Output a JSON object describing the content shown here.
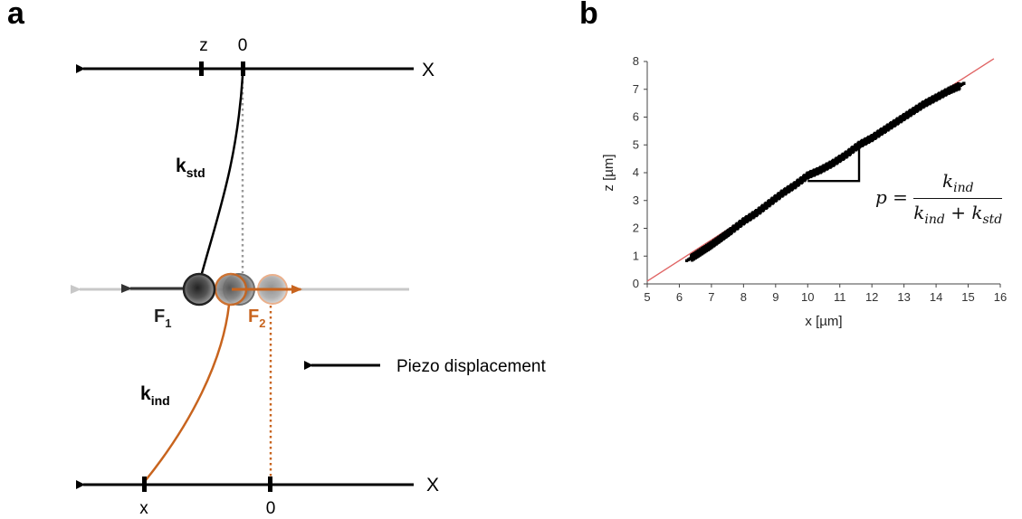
{
  "panel_a": {
    "label": "a",
    "top_axis_label": "X",
    "top_tick_z": "z",
    "top_tick_0": "0",
    "spring_std": {
      "k": "k",
      "sub": "std"
    },
    "spring_ind": {
      "k": "k",
      "sub": "ind"
    },
    "force1": {
      "F": "F",
      "sub": "1"
    },
    "force2": {
      "F": "F",
      "sub": "2"
    },
    "piezo_label": "Piezo displacement",
    "bottom_axis_label": "X",
    "bottom_tick_x": "x",
    "bottom_tick_0": "0",
    "colors": {
      "black": "#000000",
      "orange": "#c8641e",
      "grey": "#bdbdbd"
    }
  },
  "panel_b": {
    "label": "b",
    "formula": {
      "lhs": "p =",
      "numerator": {
        "k": "k",
        "sub": "ind"
      },
      "denominator": {
        "k1": "k",
        "sub1": "ind",
        "plus": "+",
        "k2": "k",
        "sub2": "std"
      }
    }
  },
  "chart_data": {
    "type": "scatter",
    "title": "",
    "xlabel": "x [µm]",
    "ylabel": "z [µm]",
    "xlim": [
      5,
      16
    ],
    "ylim": [
      0,
      8
    ],
    "x_ticks": [
      5,
      6,
      7,
      8,
      9,
      10,
      11,
      12,
      13,
      14,
      15,
      16
    ],
    "y_ticks": [
      0,
      1,
      2,
      3,
      4,
      5,
      6,
      7,
      8
    ],
    "grid": false,
    "series": [
      {
        "kind": "points",
        "color": "#000000",
        "x": [
          6.4,
          6.6,
          6.8,
          7.0,
          7.3,
          7.6,
          8.0,
          8.4,
          8.8,
          9.2,
          9.6,
          10.0,
          10.4,
          10.8,
          11.2,
          11.6,
          12.0,
          12.4,
          12.8,
          13.2,
          13.6,
          14.0,
          14.4,
          14.7
        ],
        "y": [
          0.95,
          1.1,
          1.25,
          1.4,
          1.65,
          1.9,
          2.25,
          2.55,
          2.9,
          3.25,
          3.55,
          3.9,
          4.1,
          4.35,
          4.65,
          5.0,
          5.25,
          5.55,
          5.85,
          6.15,
          6.45,
          6.7,
          6.95,
          7.1
        ]
      },
      {
        "kind": "fit_line",
        "color": "#e06464",
        "x": [
          5.0,
          15.8
        ],
        "y": [
          0.1,
          8.1
        ]
      }
    ],
    "annotation": {
      "kind": "slope_triangle",
      "x": [
        10.0,
        11.6
      ],
      "y": [
        3.7,
        5.0
      ]
    }
  }
}
